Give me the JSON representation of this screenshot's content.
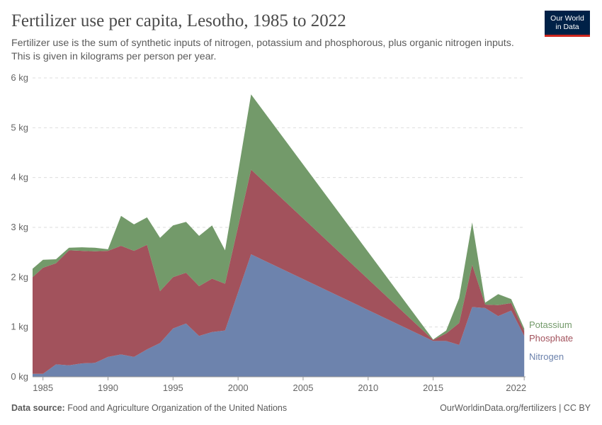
{
  "header": {
    "title": "Fertilizer use per capita, Lesotho, 1985 to 2022",
    "subtitle": "Fertilizer use is the sum of synthetic inputs of nitrogen, potassium and phosphorous, plus organic nitrogen inputs. This is given in kilograms per person per year."
  },
  "logo": {
    "line1": "Our World",
    "line2": "in Data"
  },
  "footer": {
    "source_label": "Data source:",
    "source_text": "Food and Agriculture Organization of the United Nations",
    "url": "OurWorldinData.org/fertilizers",
    "separator": "|",
    "license": "CC BY"
  },
  "colors": {
    "Nitrogen": "#6d83ad",
    "Phosphate": "#a2525c",
    "Potassium": "#739a6a"
  },
  "chart_data": {
    "type": "area",
    "stacked": true,
    "title": "Fertilizer use per capita, Lesotho, 1985 to 2022",
    "xlabel": "",
    "ylabel": "",
    "xlim": [
      1984.2,
      2022.1
    ],
    "ylim": [
      0,
      6
    ],
    "y_ticks": [
      0,
      1,
      2,
      3,
      4,
      5,
      6
    ],
    "y_tick_labels": [
      "0 kg",
      "1 kg",
      "2 kg",
      "3 kg",
      "4 kg",
      "5 kg",
      "6 kg"
    ],
    "x_ticks": [
      1985,
      1990,
      1995,
      2000,
      2005,
      2010,
      2015,
      2022
    ],
    "x_tick_labels": [
      "1985",
      "1990",
      "1995",
      "2000",
      "2005",
      "2010",
      "2015",
      "2022"
    ],
    "grid": true,
    "x": [
      1984,
      1985,
      1986,
      1987,
      1988,
      1989,
      1990,
      1991,
      1992,
      1993,
      1994,
      1995,
      1996,
      1997,
      1998,
      1999,
      2001,
      2015,
      2016,
      2017,
      2018,
      2019,
      2020,
      2021,
      2022
    ],
    "series": [
      {
        "name": "Nitrogen",
        "values": [
          0.06,
          0.06,
          0.25,
          0.23,
          0.27,
          0.28,
          0.4,
          0.45,
          0.4,
          0.55,
          0.68,
          0.97,
          1.07,
          0.82,
          0.9,
          0.93,
          2.46,
          0.72,
          0.72,
          0.64,
          1.4,
          1.38,
          1.22,
          1.33,
          0.82
        ]
      },
      {
        "name": "Phosphate",
        "values": [
          1.94,
          2.13,
          2.03,
          2.31,
          2.26,
          2.24,
          2.13,
          2.18,
          2.13,
          2.1,
          1.04,
          1.03,
          1.02,
          1.0,
          1.07,
          0.94,
          1.7,
          0.02,
          0.15,
          0.44,
          0.85,
          0.07,
          0.22,
          0.15,
          0.1
        ]
      },
      {
        "name": "Potassium",
        "values": [
          0.17,
          0.16,
          0.08,
          0.05,
          0.07,
          0.07,
          0.03,
          0.6,
          0.53,
          0.55,
          1.07,
          1.04,
          1.02,
          1.01,
          1.07,
          0.67,
          1.51,
          0.01,
          0.06,
          0.5,
          0.85,
          0.04,
          0.22,
          0.08,
          0.05
        ]
      }
    ],
    "legend": {
      "placement": "right",
      "entries": [
        "Potassium",
        "Phosphate",
        "Nitrogen"
      ]
    }
  }
}
